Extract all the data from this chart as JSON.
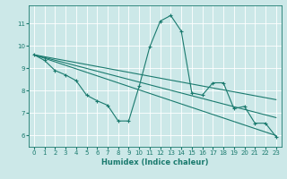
{
  "xlabel": "Humidex (Indice chaleur)",
  "bg_color": "#cce8e8",
  "grid_color": "#ffffff",
  "line_color": "#1a7a6e",
  "xlim": [
    -0.5,
    23.5
  ],
  "ylim": [
    5.5,
    11.8
  ],
  "xticks": [
    0,
    1,
    2,
    3,
    4,
    5,
    6,
    7,
    8,
    9,
    10,
    11,
    12,
    13,
    14,
    15,
    16,
    17,
    18,
    19,
    20,
    21,
    22,
    23
  ],
  "yticks": [
    6,
    7,
    8,
    9,
    10,
    11
  ],
  "main_x": [
    0,
    1,
    2,
    3,
    4,
    5,
    6,
    7,
    8,
    9,
    10,
    11,
    12,
    13,
    14,
    15,
    16,
    17,
    18,
    19,
    20,
    21,
    22,
    23
  ],
  "main_y": [
    9.6,
    9.35,
    8.9,
    8.7,
    8.45,
    7.8,
    7.55,
    7.35,
    6.65,
    6.65,
    8.2,
    9.95,
    11.1,
    11.35,
    10.65,
    7.9,
    7.8,
    8.35,
    8.35,
    7.2,
    7.3,
    6.55,
    6.55,
    5.95
  ],
  "trend_lines": [
    {
      "x": [
        0,
        23
      ],
      "y": [
        9.6,
        7.6
      ]
    },
    {
      "x": [
        0,
        23
      ],
      "y": [
        9.6,
        6.8
      ]
    },
    {
      "x": [
        0,
        23
      ],
      "y": [
        9.6,
        6.0
      ]
    }
  ]
}
